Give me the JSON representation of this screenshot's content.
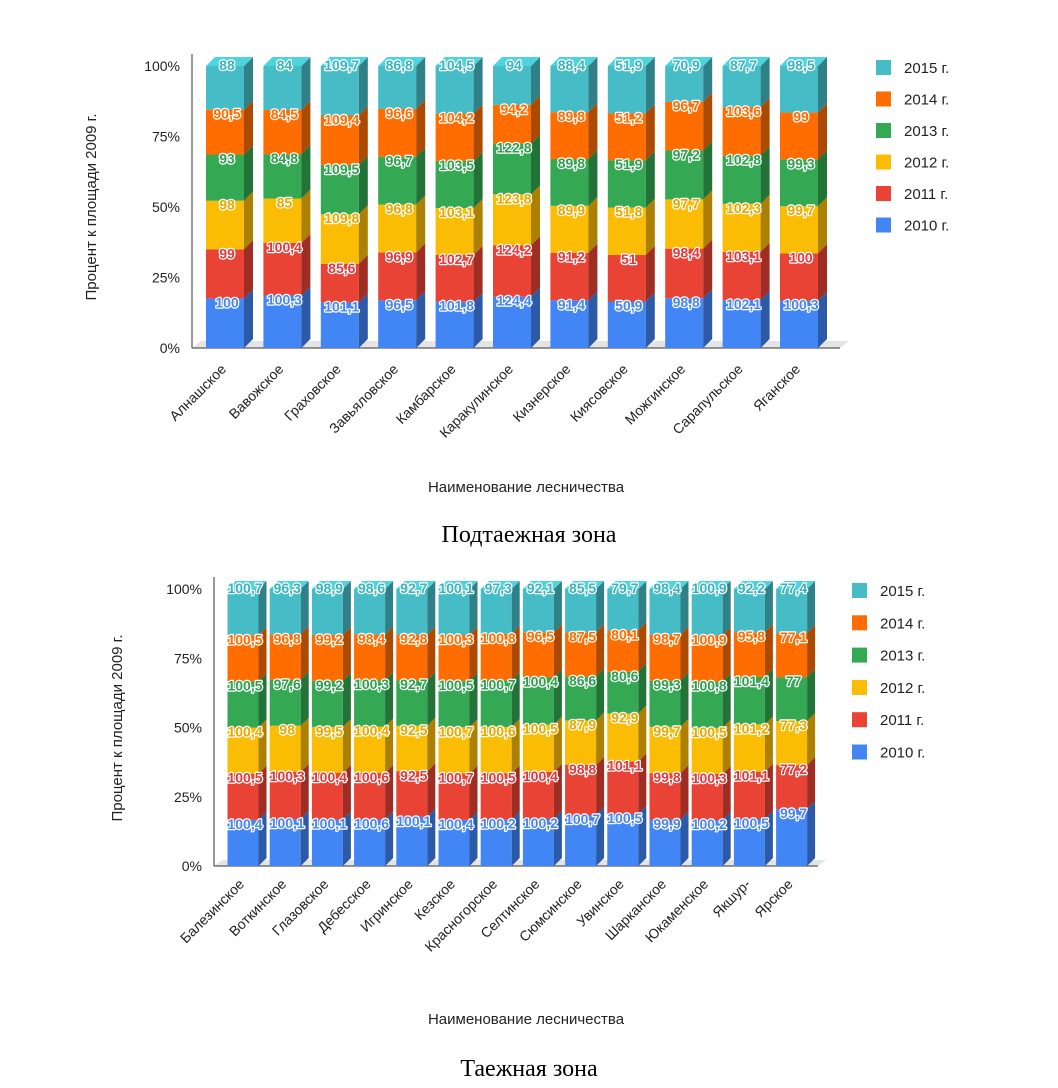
{
  "colors": {
    "2010 г.": "#4285f4",
    "2011 г.": "#e84335",
    "2012 г.": "#fbbc04",
    "2013 г.": "#34a853",
    "2014 г.": "#ff6d01",
    "2015 г.": "#46bdc6"
  },
  "captions": {
    "top": "Подтаежная зона",
    "bottom": "Таежная зона"
  },
  "chart_data": [
    {
      "type": "bar",
      "stacked": "percent",
      "title": "Подтаежная зона",
      "xlabel": "Наименование лесничества",
      "ylabel": "Процент к площади 2009 г.",
      "yticks": [
        "0%",
        "25%",
        "50%",
        "75%",
        "100%"
      ],
      "ylim": [
        0,
        100
      ],
      "legend_position": "right",
      "categories": [
        "Алнашское",
        "Вавожское",
        "Граховское",
        "Завьяловское",
        "Камбарское",
        "Каракулинское",
        "Кизнерское",
        "Киясовское",
        "Можгинское",
        "Сарапульское",
        "Яганское"
      ],
      "series": [
        {
          "name": "2010 г.",
          "values": [
            100,
            100.3,
            101.1,
            96.5,
            101.8,
            124.4,
            91.4,
            50.9,
            98.8,
            102.1,
            100.3
          ],
          "labels": [
            "100",
            "100,3",
            "101,1",
            "96,5",
            "101,8",
            "124,4",
            "91,4",
            "50,9",
            "98,8",
            "102,1",
            "100,3"
          ]
        },
        {
          "name": "2011 г.",
          "values": [
            99,
            100.4,
            85.6,
            96.9,
            102.7,
            124.2,
            91.2,
            51,
            98.4,
            103.1,
            100
          ],
          "labels": [
            "99",
            "100,4",
            "85,6",
            "96,9",
            "102,7",
            "124,2",
            "91,2",
            "51",
            "98,4",
            "103,1",
            "100"
          ]
        },
        {
          "name": "2012 г.",
          "values": [
            98,
            85,
            109.8,
            96.8,
            103.1,
            123.8,
            89.9,
            51.8,
            97.7,
            102.3,
            99.7
          ],
          "labels": [
            "98",
            "85",
            "109,8",
            "96,8",
            "103,1",
            "123,8",
            "89,9",
            "51,8",
            "97,7",
            "102,3",
            "99,7"
          ]
        },
        {
          "name": "2013 г.",
          "values": [
            93,
            84.8,
            109.5,
            96.7,
            103.5,
            122.8,
            89.8,
            51.9,
            97.2,
            102.8,
            99.3
          ],
          "labels": [
            "93",
            "84,8",
            "109,5",
            "96,7",
            "103,5",
            "122,8",
            "89,8",
            "51,9",
            "97,2",
            "102,8",
            "99,3"
          ]
        },
        {
          "name": "2014 г.",
          "values": [
            90.5,
            84.5,
            109.4,
            96.6,
            104.2,
            94.2,
            89.8,
            51.2,
            96.7,
            103.6,
            99
          ],
          "labels": [
            "90,5",
            "84,5",
            "109,4",
            "96,6",
            "104,2",
            "94,2",
            "89,8",
            "51,2",
            "96,7",
            "103,6",
            "99"
          ]
        },
        {
          "name": "2015 г.",
          "values": [
            88,
            84,
            109.7,
            86.8,
            104.5,
            94,
            88.4,
            51.9,
            70.9,
            87.7,
            98.5
          ],
          "labels": [
            "88",
            "84",
            "109,7",
            "86,8",
            "104,5",
            "94",
            "88,4",
            "51,9",
            "70,9",
            "87,7",
            "98,5"
          ]
        }
      ]
    },
    {
      "type": "bar",
      "stacked": "percent",
      "title": "Таежная зона",
      "xlabel": "Наименование лесничества",
      "ylabel": "Процент к площади 2009 г.",
      "yticks": [
        "0%",
        "25%",
        "50%",
        "75%",
        "100%"
      ],
      "ylim": [
        0,
        100
      ],
      "legend_position": "right",
      "categories": [
        "Балезинское",
        "Воткинское",
        "Глазовское",
        "Дебесское",
        "Игринское",
        "Кезское",
        "Красногорское",
        "Селтинское",
        "Сюмсинское",
        "Увинское",
        "Шарканское",
        "Юкаменское",
        "Якшур-",
        "Ярское"
      ],
      "series": [
        {
          "name": "2010 г.",
          "values": [
            100.4,
            100.1,
            100.1,
            100.6,
            100.1,
            100.4,
            100.2,
            100.2,
            100.7,
            100.5,
            99.9,
            100.2,
            100.5,
            99.7
          ],
          "labels": [
            "100,4",
            "100,1",
            "100,1",
            "100,6",
            "100,1",
            "100,4",
            "100,2",
            "100,2",
            "100,7",
            "100,5",
            "99,9",
            "100,2",
            "100,5",
            "99,7"
          ]
        },
        {
          "name": "2011 г.",
          "values": [
            100.5,
            100.3,
            100.4,
            100.6,
            92.5,
            100.7,
            100.5,
            100.4,
            98.8,
            101.1,
            99.8,
            100.3,
            101.1,
            77.2
          ],
          "labels": [
            "100,5",
            "100,3",
            "100,4",
            "100,6",
            "92,5",
            "100,7",
            "100,5",
            "100,4",
            "98,8",
            "101,1",
            "99,8",
            "100,3",
            "101,1",
            "77,2"
          ]
        },
        {
          "name": "2012 г.",
          "values": [
            100.4,
            98,
            99.5,
            100.4,
            92.5,
            100.7,
            100.6,
            100.5,
            87.9,
            92.9,
            99.7,
            100.5,
            101.2,
            77.3
          ],
          "labels": [
            "100,4",
            "98",
            "99,5",
            "100,4",
            "92,5",
            "100,7",
            "100,6",
            "100,5",
            "87,9",
            "92,9",
            "99,7",
            "100,5",
            "101,2",
            "77,3"
          ]
        },
        {
          "name": "2013 г.",
          "values": [
            100.5,
            97.6,
            99.2,
            100.3,
            92.7,
            100.5,
            100.7,
            100.4,
            86.6,
            80.6,
            99.3,
            100.8,
            101.4,
            77
          ],
          "labels": [
            "100,5",
            "97,6",
            "99,2",
            "100,3",
            "92,7",
            "100,5",
            "100,7",
            "100,4",
            "86,6",
            "80,6",
            "99,3",
            "100,8",
            "101,4",
            "77"
          ]
        },
        {
          "name": "2014 г.",
          "values": [
            100.5,
            96.8,
            99.2,
            98.4,
            92.8,
            100.3,
            100.8,
            96.5,
            87.5,
            80.1,
            98.7,
            100.9,
            95.8,
            77.1
          ],
          "labels": [
            "100,5",
            "96,8",
            "99,2",
            "98,4",
            "92,8",
            "100,3",
            "100,8",
            "96,5",
            "87,5",
            "80,1",
            "98,7",
            "100,9",
            "95,8",
            "77,1"
          ]
        },
        {
          "name": "2015 г.",
          "values": [
            100.7,
            96.3,
            98.9,
            98.6,
            92.7,
            100.1,
            97.3,
            92.1,
            85.5,
            79.7,
            98.4,
            100.9,
            92.2,
            77.4
          ],
          "labels": [
            "100,7",
            "96,3",
            "98,9",
            "98,6",
            "92,7",
            "100,1",
            "97,3",
            "92,1",
            "85,5",
            "79,7",
            "98,4",
            "100,9",
            "92,2",
            "77,4"
          ]
        }
      ]
    }
  ]
}
